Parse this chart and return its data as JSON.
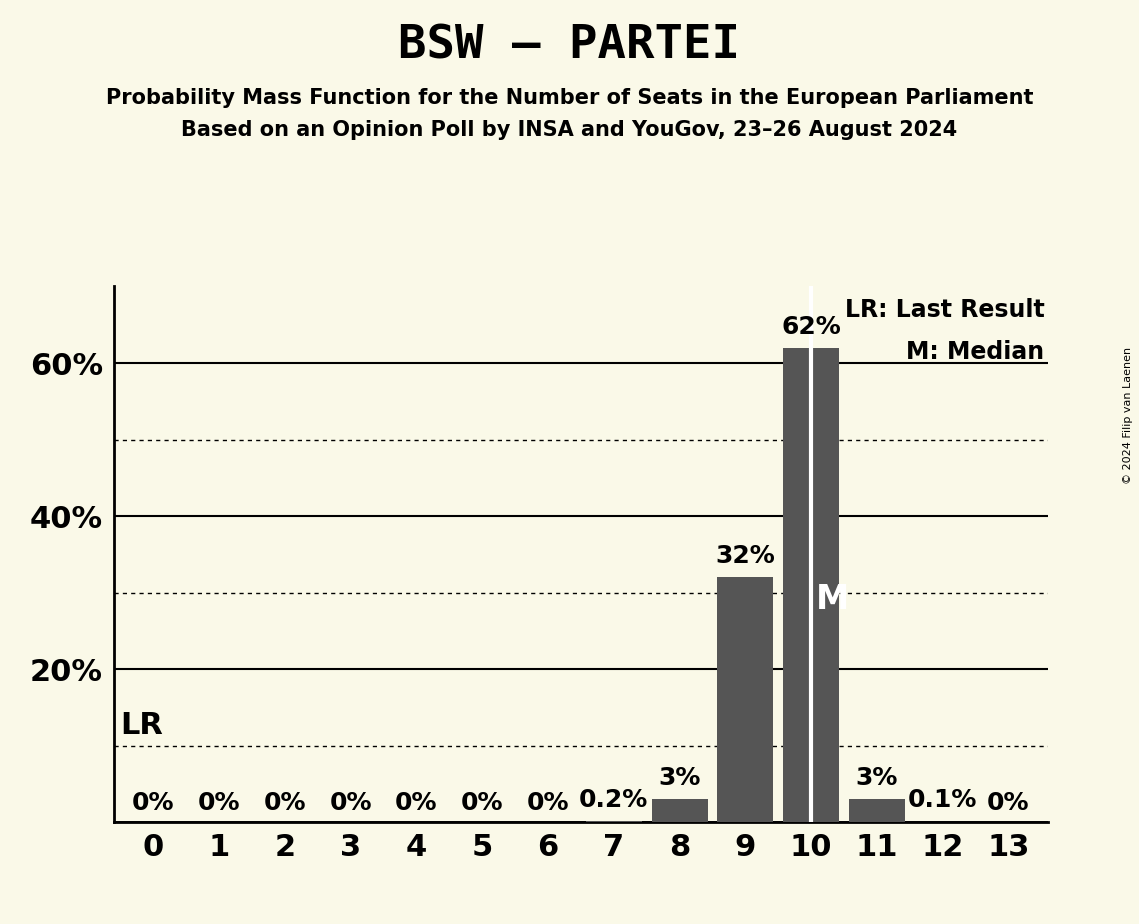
{
  "title": "BSW – PARTEI",
  "subtitle1": "Probability Mass Function for the Number of Seats in the European Parliament",
  "subtitle2": "Based on an Opinion Poll by INSA and YouGov, 23–26 August 2024",
  "copyright": "© 2024 Filip van Laenen",
  "categories": [
    0,
    1,
    2,
    3,
    4,
    5,
    6,
    7,
    8,
    9,
    10,
    11,
    12,
    13
  ],
  "values": [
    0.0,
    0.0,
    0.0,
    0.0,
    0.0,
    0.0,
    0.0,
    0.2,
    3.0,
    32.0,
    62.0,
    3.0,
    0.1,
    0.0
  ],
  "labels": [
    "0%",
    "0%",
    "0%",
    "0%",
    "0%",
    "0%",
    "0%",
    "0.2%",
    "3%",
    "32%",
    "62%",
    "3%",
    "0.1%",
    "0%"
  ],
  "bar_color": "#555555",
  "background_color": "#faf9e8",
  "median": 10,
  "last_result": 10,
  "median_label": "M",
  "lr_label": "LR",
  "legend_lr": "LR: Last Result",
  "legend_m": "M: Median",
  "ylim": [
    0,
    70
  ],
  "ytick_positions": [
    20,
    40,
    60
  ],
  "ytick_labels": [
    "20%",
    "40%",
    "60%"
  ],
  "solid_gridlines": [
    20,
    40,
    60
  ],
  "dotted_gridlines": [
    10,
    30,
    50
  ],
  "lr_line_y": 10,
  "bar_width": 0.85,
  "xlim": [
    -0.6,
    13.6
  ]
}
